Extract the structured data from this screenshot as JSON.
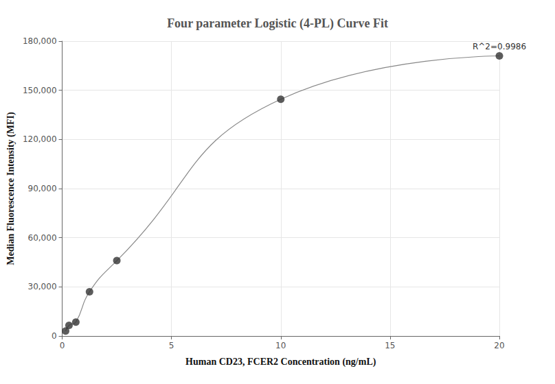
{
  "chart_data": {
    "type": "scatter",
    "title": "Four parameter Logistic (4-PL) Curve Fit",
    "x_label": "Human CD23, FCER2 Concentration (ng/mL)",
    "y_label": "Median Fluorescence Intensity (MFI)",
    "annotation": "R^2=0.9986",
    "x": [
      0.156,
      0.3125,
      0.625,
      1.25,
      2.5,
      10,
      20
    ],
    "values": [
      3000,
      6500,
      8500,
      27000,
      46000,
      144500,
      171000
    ],
    "color": "#333333",
    "marker": "circle",
    "line_style": "smooth",
    "xlim": [
      0,
      20
    ],
    "xticks": [
      0,
      5,
      10,
      15,
      20
    ],
    "ylim": [
      0,
      180000
    ],
    "yticks": [
      0,
      {
        "value": 30000,
        "label": "30,000"
      },
      {
        "value": 60000,
        "label": "60,000"
      },
      {
        "value": 90000,
        "label": "90,000"
      },
      {
        "value": 120000,
        "label": "120,000"
      },
      {
        "value": 150000,
        "label": "150,000"
      },
      {
        "value": 180000,
        "label": "180,000"
      }
    ],
    "grid": true
  }
}
